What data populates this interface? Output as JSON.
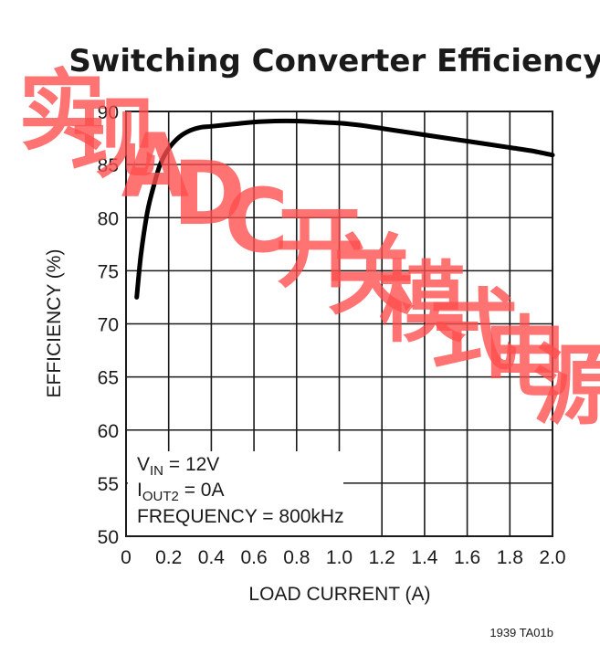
{
  "chart_data": {
    "type": "line",
    "title": "Switching Converter Efficiency",
    "xlabel": "LOAD CURRENT (A)",
    "ylabel": "EFFICIENCY (%)",
    "xlim": [
      0,
      2.0
    ],
    "ylim": [
      50,
      90
    ],
    "x_ticks": [
      "0",
      "0.2",
      "0.4",
      "0.6",
      "0.8",
      "1.0",
      "1.2",
      "1.4",
      "1.6",
      "1.8",
      "2.0"
    ],
    "y_ticks": [
      "50",
      "55",
      "60",
      "65",
      "70",
      "75",
      "80",
      "85",
      "90"
    ],
    "grid": true,
    "legend": "none",
    "series": [
      {
        "color": "#000000",
        "x": [
          0.05,
          0.07,
          0.1,
          0.13,
          0.16,
          0.2,
          0.25,
          0.3,
          0.35,
          0.4,
          0.5,
          0.6,
          0.7,
          0.8,
          0.9,
          1.0,
          1.1,
          1.2,
          1.3,
          1.4,
          1.5,
          1.6,
          1.7,
          1.8,
          1.9,
          2.0
        ],
        "y": [
          72.5,
          76.5,
          80.5,
          83.0,
          85.0,
          86.5,
          87.6,
          88.2,
          88.5,
          88.6,
          88.8,
          89.0,
          89.1,
          89.1,
          89.0,
          88.9,
          88.7,
          88.4,
          88.1,
          87.8,
          87.5,
          87.2,
          86.9,
          86.6,
          86.3,
          85.9
        ]
      }
    ],
    "annotations": {
      "vin_main": "V",
      "vin_sub": "IN",
      "vin_rest": " = 12V",
      "iout_main": "I",
      "iout_sub": "OUT2",
      "iout_rest": " = 0A",
      "frequency": "FREQUENCY = 800kHz"
    },
    "figure_id": "1939 TA01b"
  },
  "watermark": {
    "text": "实现 ADC 开关模式电源",
    "color": "#ff4d4d"
  }
}
